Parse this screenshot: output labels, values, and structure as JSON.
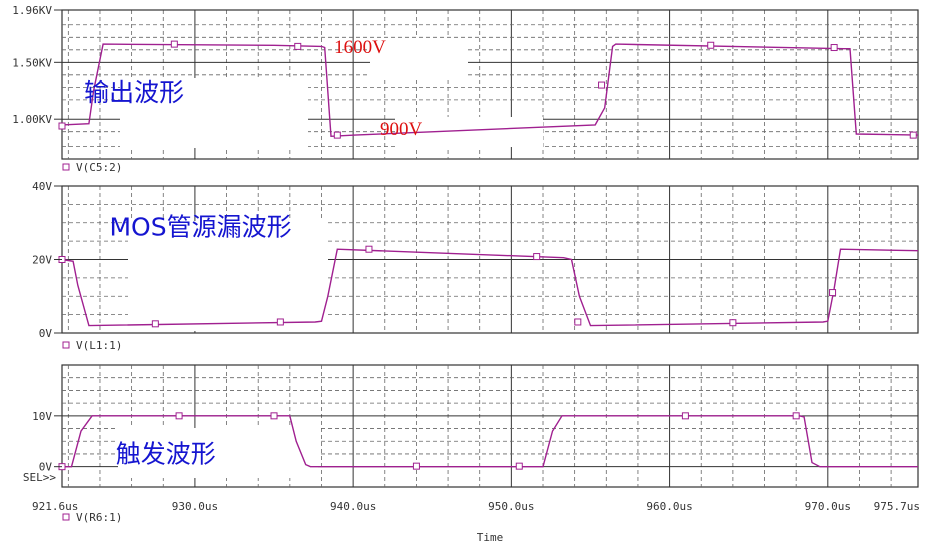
{
  "chart_data": {
    "type": "line",
    "x_axis": {
      "label": "Time",
      "range": [
        921.6,
        975.7
      ],
      "ticks": [
        {
          "v": 921.6,
          "label": "921.6us"
        },
        {
          "v": 930.0,
          "label": "930.0us"
        },
        {
          "v": 940.0,
          "label": "940.0us"
        },
        {
          "v": 950.0,
          "label": "950.0us"
        },
        {
          "v": 960.0,
          "label": "960.0us"
        },
        {
          "v": 970.0,
          "label": "970.0us"
        },
        {
          "v": 975.7,
          "label": "975.7us"
        }
      ]
    },
    "panels": [
      {
        "id": "output",
        "ylim": [
          0.65,
          1.96
        ],
        "ticks": [
          {
            "v": 1.96,
            "label": "1.96KV"
          },
          {
            "v": 1.5,
            "label": "1.50KV"
          },
          {
            "v": 1.0,
            "label": "1.00KV"
          }
        ],
        "grid_major": [
          1.96,
          1.5,
          1.0
        ],
        "grid_minor": [
          1.83,
          1.72,
          1.61,
          1.39,
          1.28,
          1.17,
          0.89,
          0.76
        ],
        "series": {
          "name": "V(C5:2)",
          "color": "#a02090",
          "x": [
            921.6,
            923.3,
            923.6,
            924.2,
            935.0,
            938.0,
            938.2,
            938.6,
            940.1,
            955.3,
            955.9,
            956.4,
            956.6,
            971.0,
            971.4,
            971.8,
            975.7
          ],
          "y": [
            0.95,
            0.96,
            1.25,
            1.66,
            1.65,
            1.64,
            1.63,
            0.85,
            0.86,
            0.95,
            1.1,
            1.64,
            1.66,
            1.62,
            1.62,
            0.87,
            0.86
          ],
          "markers": [
            [
              921.6,
              0.94
            ],
            [
              928.7,
              1.66
            ],
            [
              936.5,
              1.64
            ],
            [
              939.0,
              0.86
            ],
            [
              955.7,
              1.3
            ],
            [
              962.6,
              1.65
            ],
            [
              970.4,
              1.63
            ],
            [
              975.4,
              0.86
            ]
          ]
        },
        "annotations": [
          {
            "text": "1600V",
            "x": 938.8,
            "y": 1.58,
            "kind": "value"
          },
          {
            "text": "900V",
            "x": 941.7,
            "y": 0.86,
            "kind": "value"
          },
          {
            "text": "输出波形",
            "x": 923.0,
            "y": 1.16,
            "kind": "label"
          }
        ]
      },
      {
        "id": "mos",
        "ylim": [
          0,
          40
        ],
        "ticks": [
          {
            "v": 40,
            "label": "40V"
          },
          {
            "v": 20,
            "label": "20V"
          },
          {
            "v": 0,
            "label": "0V"
          }
        ],
        "grid_major": [
          40,
          20,
          0
        ],
        "grid_minor": [
          35,
          30,
          25,
          15,
          10,
          5
        ],
        "series": {
          "name": "V(L1:1)",
          "color": "#a02090",
          "x": [
            921.6,
            922.3,
            922.6,
            923.3,
            937.6,
            938.0,
            938.4,
            939.0,
            953.3,
            953.8,
            954.3,
            955.0,
            969.7,
            970.0,
            970.4,
            970.8,
            975.7
          ],
          "y": [
            20.0,
            19.5,
            13.0,
            2.0,
            3.0,
            3.2,
            10.0,
            22.8,
            20.5,
            20.0,
            10.0,
            2.0,
            3.0,
            3.2,
            12.0,
            22.8,
            22.4
          ],
          "markers": [
            [
              921.6,
              20.0
            ],
            [
              927.5,
              2.5
            ],
            [
              935.4,
              3.0
            ],
            [
              941.0,
              22.8
            ],
            [
              951.6,
              20.8
            ],
            [
              954.2,
              3.0
            ],
            [
              964.0,
              2.8
            ],
            [
              970.3,
              11.0
            ]
          ]
        },
        "annotations": [
          {
            "text": "MOS管源漏波形",
            "x": 924.6,
            "y": 26.5,
            "kind": "label"
          }
        ]
      },
      {
        "id": "trigger",
        "ylim": [
          -4,
          20
        ],
        "ticks": [
          {
            "v": 10,
            "label": "10V"
          },
          {
            "v": 0,
            "label": "0V"
          }
        ],
        "grid_major": [
          10,
          0
        ],
        "grid_minor": [
          17.5,
          15,
          12.5,
          7.5,
          5,
          2.5
        ],
        "series": {
          "name": "V(R6:1)",
          "color": "#a02090",
          "x": [
            921.6,
            922.2,
            922.8,
            923.5,
            924.4,
            935.6,
            936.0,
            936.4,
            937.0,
            937.3,
            952.0,
            952.6,
            953.2,
            953.8,
            968.2,
            968.5,
            969.0,
            969.5,
            975.7
          ],
          "y": [
            0,
            0,
            7.0,
            10.0,
            10.0,
            10.0,
            10.0,
            5.0,
            0.4,
            0,
            0,
            7.0,
            10.0,
            10.0,
            10.0,
            9.8,
            0.8,
            0,
            0
          ],
          "markers": [
            [
              921.6,
              0
            ],
            [
              929.0,
              10.0
            ],
            [
              935.0,
              10.0
            ],
            [
              944.0,
              0.1
            ],
            [
              950.5,
              0.1
            ],
            [
              961.0,
              10.0
            ],
            [
              968.0,
              10.0
            ]
          ]
        },
        "annotations": [
          {
            "text": "触发波形",
            "x": 925.0,
            "y": 0.8,
            "kind": "label"
          }
        ],
        "selector": "SEL>>"
      }
    ]
  },
  "legend_swatch_color": "#a02090"
}
